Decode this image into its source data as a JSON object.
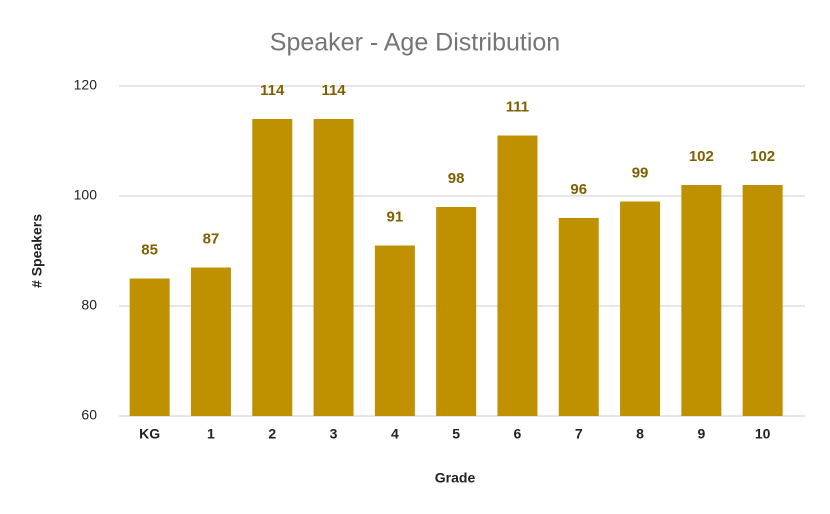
{
  "chart_data": {
    "type": "bar",
    "title": "Speaker - Age Distribution",
    "x_label": "Grade",
    "y_label": "# Speakers",
    "categories": [
      "KG",
      "1",
      "2",
      "3",
      "4",
      "5",
      "6",
      "7",
      "8",
      "9",
      "10"
    ],
    "values": [
      85,
      87,
      114,
      114,
      91,
      98,
      111,
      96,
      99,
      102,
      102
    ],
    "color": "#bf9000",
    "label_color": "#7f6000",
    "ylim": [
      60,
      120
    ],
    "yticks": [
      60,
      80,
      100,
      120
    ],
    "grid": true
  }
}
